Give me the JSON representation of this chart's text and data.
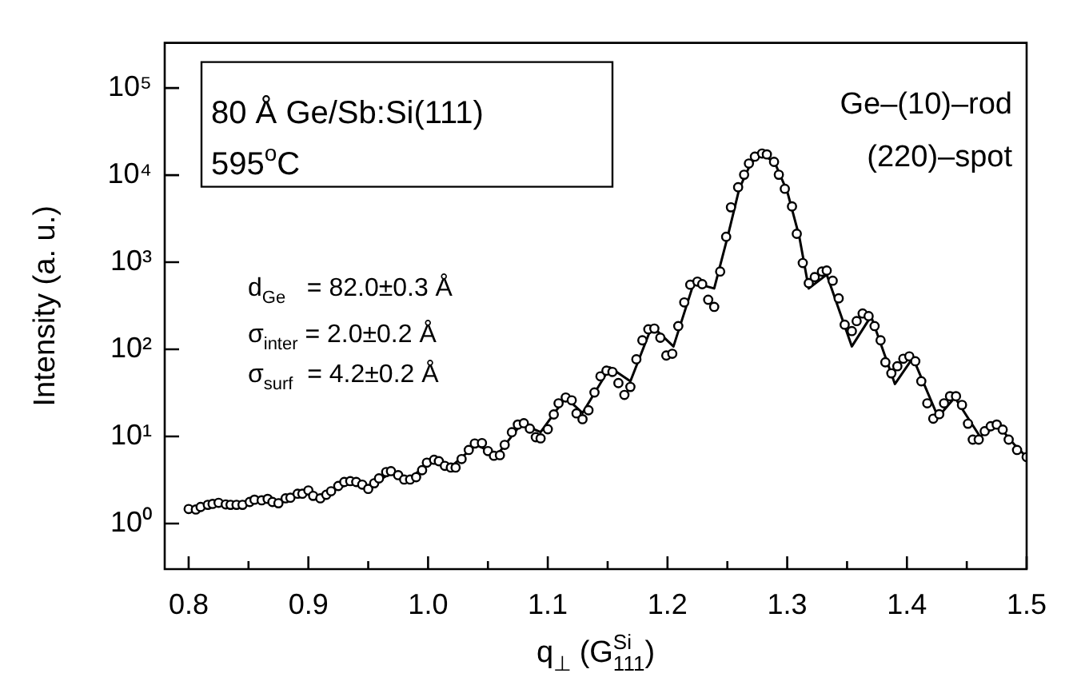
{
  "chart_data": {
    "type": "scatter",
    "xlabel": "q$_{⊥}$ (G$^{Si}$$_{111}$)",
    "ylabel": "Intensity (a. u.)",
    "xlim": [
      0.78,
      1.5
    ],
    "xticks": [
      0.8,
      {
        "value": 0.85,
        "label": null
      },
      0.9,
      {
        "value": 0.95,
        "label": null
      },
      {
        "value": 1.0,
        "label": "1.0"
      },
      {
        "value": 1.05,
        "label": null
      },
      1.1,
      {
        "value": 1.15,
        "label": null
      },
      1.2,
      {
        "value": 1.25,
        "label": null
      },
      1.3,
      {
        "value": 1.35,
        "label": null
      },
      1.4,
      {
        "value": 1.45,
        "label": null
      },
      1.5
    ],
    "ylim": [
      0.33,
      330000
    ],
    "yticks": [
      {
        "value": 1,
        "label": "10⁰"
      },
      {
        "value": 10,
        "label": "10¹"
      },
      {
        "value": 100,
        "label": "10²"
      },
      {
        "value": 1000,
        "label": "10³"
      },
      {
        "value": 10000,
        "label": "10⁴"
      },
      {
        "value": 100000,
        "label": "10⁵"
      }
    ],
    "log": "y",
    "grid": false,
    "legend": false,
    "annotations": [
      "80 Å Ge/Sb:Si(111)",
      "595$^{o}$C",
      "Ge–(10)–rod",
      "(220)–spot",
      "d$_{Ge}$   = 82.0±0.3 Å",
      "σ$_{inter}$ = 2.0±0.2 Å",
      "σ$_{surf}$  = 4.2±0.2 Å"
    ],
    "series": [
      {
        "type": "scatter",
        "color": "#000000",
        "marker": "circle",
        "x": [
          0.8,
          0.806,
          0.81,
          0.816,
          0.82,
          0.825,
          0.831,
          0.835,
          0.84,
          0.845,
          0.851,
          0.855,
          0.861,
          0.866,
          0.87,
          0.875,
          0.881,
          0.885,
          0.891,
          0.895,
          0.9,
          0.904,
          0.91,
          0.915,
          0.919,
          0.925,
          0.93,
          0.935,
          0.94,
          0.945,
          0.95,
          0.955,
          0.959,
          0.965,
          0.969,
          0.975,
          0.98,
          0.985,
          0.99,
          0.995,
          0.999,
          1.005,
          1.009,
          1.014,
          1.019,
          1.023,
          1.028,
          1.034,
          1.039,
          1.045,
          1.05,
          1.055,
          1.06,
          1.064,
          1.07,
          1.075,
          1.08,
          1.085,
          1.09,
          1.094,
          1.1,
          1.105,
          1.109,
          1.115,
          1.12,
          1.124,
          1.129,
          1.134,
          1.139,
          1.144,
          1.149,
          1.154,
          1.159,
          1.164,
          1.169,
          1.174,
          1.179,
          1.184,
          1.189,
          1.194,
          1.199,
          1.204,
          1.209,
          1.214,
          1.219,
          1.225,
          1.229,
          1.234,
          1.239,
          1.244,
          1.249,
          1.253,
          1.259,
          1.264,
          1.268,
          1.273,
          1.279,
          1.283,
          1.289,
          1.293,
          1.298,
          1.304,
          1.308,
          1.313,
          1.318,
          1.323,
          1.329,
          1.333,
          1.338,
          1.343,
          1.348,
          1.354,
          1.358,
          1.363,
          1.368,
          1.373,
          1.378,
          1.382,
          1.387,
          1.392,
          1.397,
          1.402,
          1.407,
          1.412,
          1.417,
          1.422,
          1.427,
          1.431,
          1.436,
          1.441,
          1.446,
          1.451,
          1.455,
          1.46,
          1.465,
          1.47,
          1.475,
          1.48,
          1.485,
          1.492,
          1.5
        ],
        "values": [
          1.47,
          1.45,
          1.55,
          1.64,
          1.68,
          1.73,
          1.66,
          1.64,
          1.64,
          1.64,
          1.77,
          1.88,
          1.85,
          1.92,
          1.77,
          1.71,
          1.95,
          1.98,
          2.2,
          2.2,
          2.4,
          2.08,
          1.95,
          2.14,
          2.35,
          2.7,
          3.0,
          3.07,
          3.0,
          2.8,
          2.5,
          2.9,
          3.3,
          3.9,
          4.0,
          3.6,
          3.2,
          3.2,
          3.4,
          4.1,
          5.0,
          5.4,
          5.2,
          4.6,
          4.4,
          4.4,
          5.5,
          7.0,
          8.3,
          8.4,
          6.8,
          6.0,
          6.1,
          8.0,
          11.2,
          13.7,
          14.2,
          12.3,
          9.8,
          9.5,
          12.1,
          17.9,
          24,
          28,
          26,
          18.4,
          15.8,
          20,
          32,
          49,
          57,
          55,
          41,
          30,
          37,
          77,
          127,
          170,
          173,
          136,
          85,
          89,
          185,
          346,
          552,
          599,
          560,
          371,
          307,
          782,
          1960,
          4270,
          7260,
          10100,
          13600,
          16300,
          17700,
          17300,
          14200,
          10100,
          6970,
          4370,
          2120,
          980,
          575,
          675,
          781,
          802,
          614,
          385,
          192,
          162,
          211,
          258,
          241,
          185,
          127,
          71,
          53,
          64,
          78,
          83,
          73,
          43,
          24,
          16,
          18,
          24,
          29,
          29,
          23,
          14,
          9.2,
          9.2,
          11.5,
          13.1,
          13.7,
          12.0,
          9.2,
          7.0,
          5.8
        ]
      },
      {
        "type": "line",
        "color": "#000000",
        "marker": "none",
        "line_style": "solid",
        "x": [
          0.8,
          0.82,
          0.84,
          0.86,
          0.88,
          0.9,
          0.91,
          0.935,
          0.95,
          0.968,
          0.985,
          1.005,
          1.02,
          1.04,
          1.058,
          1.078,
          1.094,
          1.115,
          1.129,
          1.152,
          1.169,
          1.187,
          1.205,
          1.222,
          1.239,
          1.25,
          1.26,
          1.27,
          1.28,
          1.29,
          1.3,
          1.31,
          1.318,
          1.333,
          1.354,
          1.37,
          1.39,
          1.405,
          1.426,
          1.44,
          1.461,
          1.476,
          1.49,
          1.5
        ],
        "values": [
          1.4,
          1.6,
          1.65,
          1.8,
          1.9,
          2.2,
          2.1,
          2.9,
          2.7,
          3.7,
          3.4,
          5.2,
          4.6,
          8.0,
          6.2,
          14.0,
          11.2,
          28,
          18.6,
          62,
          43,
          185,
          108,
          580,
          500,
          1900,
          7000,
          14000,
          17500,
          13500,
          6500,
          2000,
          500,
          720,
          108,
          240,
          40,
          80,
          16.7,
          28,
          10,
          13.5,
          8,
          5.8
        ]
      }
    ]
  }
}
